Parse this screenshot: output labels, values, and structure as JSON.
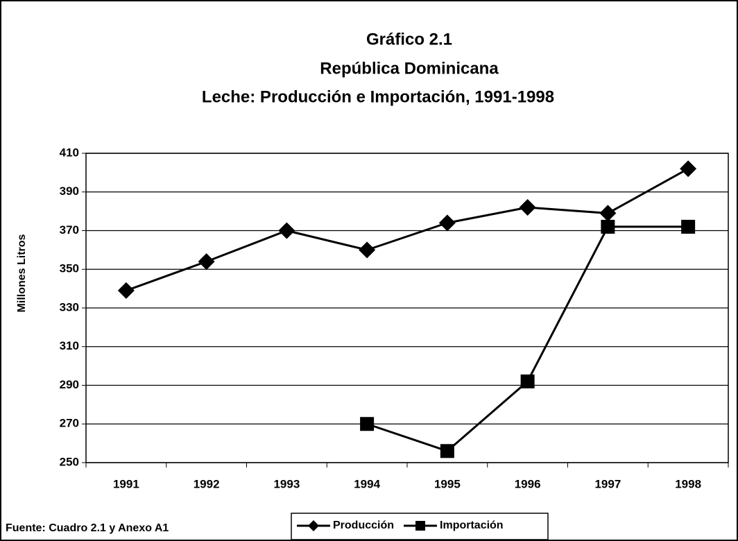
{
  "chart_data": {
    "type": "line",
    "title": "Gráfico 2.1",
    "subtitle": [
      "República Dominicana",
      "Leche: Producción e Importación, 1991-1998"
    ],
    "y_label": "Millones Litros",
    "source": "Fuente: Cuadro 2.1 y Anexo A1",
    "categories": [
      "1991",
      "1992",
      "1993",
      "1994",
      "1995",
      "1996",
      "1997",
      "1998"
    ],
    "series": [
      {
        "name": "Producción",
        "color": "#000000",
        "marker": "diamond",
        "values": [
          339,
          354,
          370,
          360,
          374,
          382,
          379,
          402
        ]
      },
      {
        "name": "Importación",
        "color": "#000000",
        "marker": "square",
        "values": [
          null,
          null,
          null,
          270,
          256,
          292,
          372,
          372
        ]
      }
    ],
    "ylim": [
      250,
      410
    ],
    "yticks": [
      250,
      270,
      290,
      310,
      330,
      350,
      370,
      390,
      410
    ],
    "grid": true,
    "legend": "bottom"
  }
}
